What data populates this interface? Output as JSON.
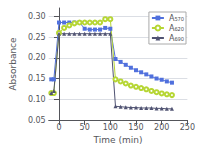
{
  "chart_data": {
    "type": "line",
    "xlabel": "Time (min)",
    "ylabel": "Absorbance",
    "x": [
      -15,
      -10,
      0,
      10,
      20,
      30,
      40,
      50,
      60,
      70,
      80,
      90,
      100,
      110,
      120,
      130,
      140,
      150,
      160,
      170,
      180,
      190,
      200,
      210,
      220
    ],
    "series": [
      {
        "name": "A₅₇₀",
        "marker": "square",
        "values": [
          0.148,
          0.148,
          0.285,
          0.285,
          0.285,
          0.285,
          0.285,
          0.27,
          0.268,
          0.268,
          0.268,
          0.272,
          0.27,
          0.197,
          0.19,
          0.183,
          0.176,
          0.17,
          0.165,
          0.16,
          0.155,
          0.15,
          0.147,
          0.143,
          0.14
        ]
      },
      {
        "name": "A₆₂₀",
        "marker": "emptyCircle",
        "values": [
          0.115,
          0.115,
          0.26,
          0.272,
          0.278,
          0.283,
          0.285,
          0.285,
          0.285,
          0.285,
          0.285,
          0.293,
          0.293,
          0.148,
          0.143,
          0.138,
          0.133,
          0.13,
          0.127,
          0.124,
          0.12,
          0.117,
          0.114,
          0.112,
          0.11
        ]
      },
      {
        "name": "A₆₉₀",
        "marker": "triangle",
        "values": [
          0.115,
          0.12,
          0.258,
          0.258,
          0.258,
          0.258,
          0.258,
          0.258,
          0.258,
          0.258,
          0.258,
          0.258,
          0.258,
          0.083,
          0.082,
          0.081,
          0.08,
          0.08,
          0.079,
          0.079,
          0.079,
          0.078,
          0.078,
          0.077,
          0.077
        ]
      }
    ],
    "xlim": [
      -20,
      250
    ],
    "xticks": [
      0,
      50,
      100,
      150,
      200,
      250
    ],
    "ylim": [
      0.05,
      0.32
    ],
    "yticks": [
      0.05,
      {
        "value": 0.1,
        "label": "0.10"
      },
      0.15,
      {
        "value": 0.2,
        "label": "0.20"
      },
      0.25,
      {
        "value": 0.3,
        "label": "0.30"
      }
    ],
    "grid": "y",
    "legend": "upper right"
  }
}
